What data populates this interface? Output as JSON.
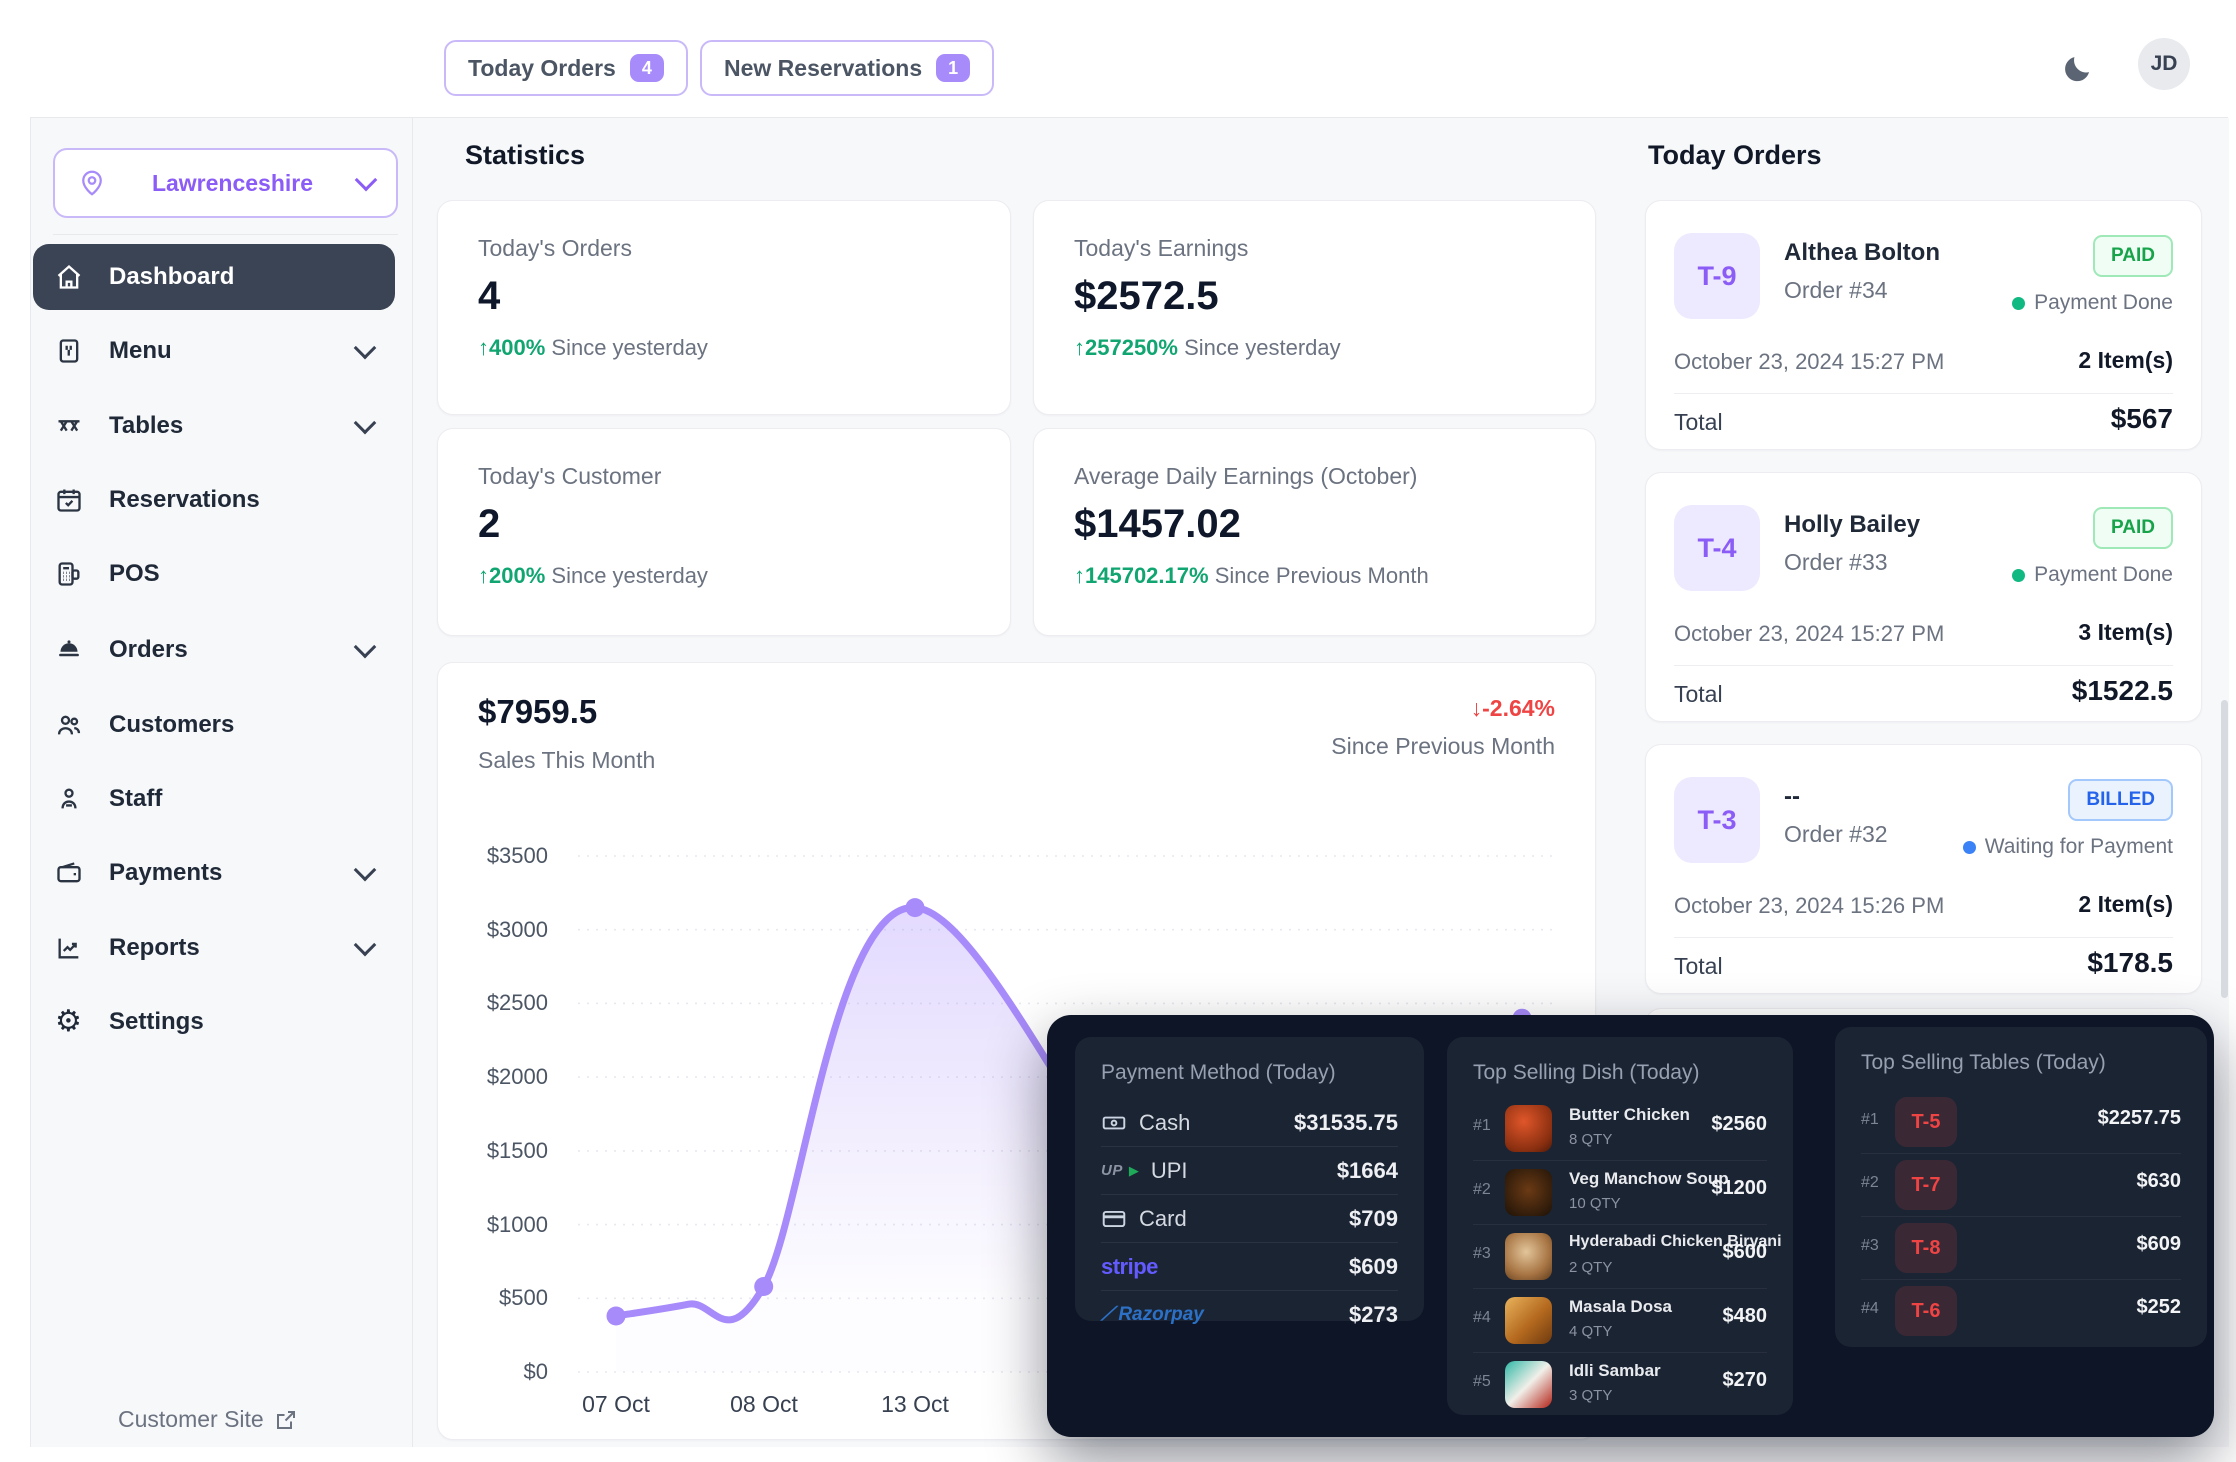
{
  "header": {
    "today_orders": {
      "label": "Today Orders",
      "count": "4"
    },
    "new_reservations": {
      "label": "New Reservations",
      "count": "1"
    },
    "avatar": "JD"
  },
  "sidebar": {
    "location": "Lawrenceshire",
    "items": [
      {
        "label": "Dashboard"
      },
      {
        "label": "Menu"
      },
      {
        "label": "Tables"
      },
      {
        "label": "Reservations"
      },
      {
        "label": "POS"
      },
      {
        "label": "Orders"
      },
      {
        "label": "Customers"
      },
      {
        "label": "Staff"
      },
      {
        "label": "Payments"
      },
      {
        "label": "Reports"
      },
      {
        "label": "Settings"
      }
    ],
    "customer_site": "Customer Site"
  },
  "stats": {
    "title": "Statistics",
    "cards": [
      {
        "label": "Today's Orders",
        "value": "4",
        "delta": "↑400%",
        "note": "Since yesterday"
      },
      {
        "label": "Today's Earnings",
        "value": "$2572.5",
        "delta": "↑257250%",
        "note": "Since yesterday"
      },
      {
        "label": "Today's Customer",
        "value": "2",
        "delta": "↑200%",
        "note": "Since yesterday"
      },
      {
        "label": "Average Daily Earnings (October)",
        "value": "$1457.02",
        "delta": "↑145702.17%",
        "note": "Since Previous Month"
      }
    ]
  },
  "chart_data": {
    "type": "area",
    "value": "$7959.5",
    "label": "Sales This Month",
    "delta": "↓-2.64%",
    "delta_note": "Since Previous Month",
    "x_tick_labels": [
      "07 Oct",
      "08 Oct",
      "13 Oct"
    ],
    "y_ticks": [
      "$3500",
      "$3000",
      "$2500",
      "$2000",
      "$1500",
      "$1000",
      "$500",
      "$0"
    ],
    "ylim": [
      0,
      3500
    ],
    "visible_points": [
      {
        "x": "07 Oct",
        "y": 380
      },
      {
        "x": "08 Oct",
        "y": 580
      },
      {
        "x": "13 Oct",
        "y": 3150
      },
      {
        "x": "latest (right edge, partly hidden)",
        "y": 2400
      }
    ],
    "curve_samples": [
      [
        0,
        380
      ],
      [
        0.08,
        460
      ],
      [
        0.163,
        580
      ],
      [
        0.33,
        3150
      ],
      [
        0.7,
        380
      ],
      [
        1,
        2400
      ]
    ],
    "marker_ts": [
      0,
      0.163,
      0.33,
      1
    ],
    "line_color": "#a78bfa",
    "grid": true,
    "legend": false
  },
  "today_orders": {
    "title": "Today Orders",
    "orders": [
      {
        "table": "T-9",
        "name": "Althea Bolton",
        "order_no": "Order #34",
        "status": "PAID",
        "status_note": "Payment Done",
        "date": "October 23, 2024 15:27 PM",
        "items": "2 Item(s)",
        "total_label": "Total",
        "total": "$567"
      },
      {
        "table": "T-4",
        "name": "Holly Bailey",
        "order_no": "Order #33",
        "status": "PAID",
        "status_note": "Payment Done",
        "date": "October 23, 2024 15:27 PM",
        "items": "3 Item(s)",
        "total_label": "Total",
        "total": "$1522.5"
      },
      {
        "table": "T-3",
        "name": "--",
        "order_no": "Order #32",
        "status": "BILLED",
        "status_note": "Waiting for Payment",
        "date": "October 23, 2024 15:26 PM",
        "items": "2 Item(s)",
        "total_label": "Total",
        "total": "$178.5"
      }
    ]
  },
  "payment_methods": {
    "title": "Payment Method (Today)",
    "rows": [
      {
        "method": "Cash",
        "amount": "$31535.75"
      },
      {
        "method": "UPI",
        "amount": "$1664"
      },
      {
        "method": "Card",
        "amount": "$709"
      },
      {
        "method": "stripe",
        "amount": "$609"
      },
      {
        "method": "Razorpay",
        "amount": "$273"
      }
    ]
  },
  "top_dishes": {
    "title": "Top Selling Dish (Today)",
    "rows": [
      {
        "rank": "#1",
        "name": "Butter Chicken",
        "qty": "8 QTY",
        "amount": "$2560"
      },
      {
        "rank": "#2",
        "name": "Veg Manchow Soup",
        "qty": "10 QTY",
        "amount": "$1200"
      },
      {
        "rank": "#3",
        "name": "Hyderabadi Chicken Biryani",
        "qty": "2 QTY",
        "amount": "$600"
      },
      {
        "rank": "#4",
        "name": "Masala Dosa",
        "qty": "4 QTY",
        "amount": "$480"
      },
      {
        "rank": "#5",
        "name": "Idli Sambar",
        "qty": "3 QTY",
        "amount": "$270"
      }
    ]
  },
  "top_tables": {
    "title": "Top Selling Tables (Today)",
    "rows": [
      {
        "rank": "#1",
        "table": "T-5",
        "amount": "$2257.75"
      },
      {
        "rank": "#2",
        "table": "T-7",
        "amount": "$630"
      },
      {
        "rank": "#3",
        "table": "T-8",
        "amount": "$609"
      },
      {
        "rank": "#4",
        "table": "T-6",
        "amount": "$252"
      }
    ]
  }
}
